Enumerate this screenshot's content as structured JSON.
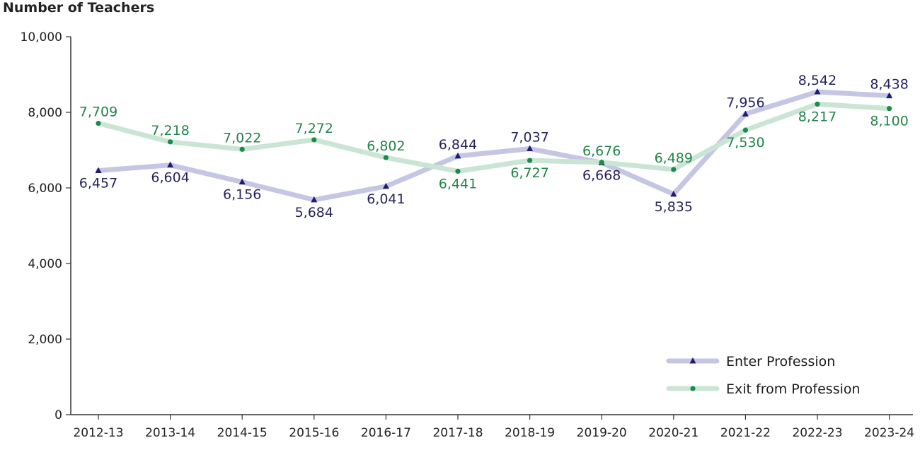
{
  "chart_data": {
    "type": "line",
    "ylabel": "Number of Teachers",
    "xlabel": "",
    "title": "",
    "ylim": [
      0,
      10000
    ],
    "yticks": [
      0,
      2000,
      4000,
      6000,
      8000,
      10000
    ],
    "ytick_labels": [
      "0",
      "2,000",
      "4,000",
      "6,000",
      "8,000",
      "10,000"
    ],
    "categories": [
      "2012-13",
      "2013-14",
      "2014-15",
      "2015-16",
      "2016-17",
      "2017-18",
      "2018-19",
      "2019-20",
      "2020-21",
      "2021-22",
      "2022-23",
      "2023-24"
    ],
    "series": [
      {
        "name": "Enter Profession",
        "values": [
          6457,
          6604,
          6156,
          5684,
          6041,
          6844,
          7037,
          6668,
          5835,
          7956,
          8542,
          8438
        ],
        "labels": [
          "6,457",
          "6,604",
          "6,156",
          "5,684",
          "6,041",
          "6,844",
          "7,037",
          "6,668",
          "5,835",
          "7,956",
          "8,542",
          "8,438"
        ],
        "line_color": "#c5c6e3",
        "marker_color": "#1f1c6e",
        "label_color": "#26235f",
        "marker": "triangle"
      },
      {
        "name": "Exit from Profession",
        "values": [
          7709,
          7218,
          7022,
          7272,
          6802,
          6441,
          6727,
          6676,
          6489,
          7530,
          8217,
          8100
        ],
        "labels": [
          "7,709",
          "7,218",
          "7,022",
          "7,272",
          "6,802",
          "6,441",
          "6,727",
          "6,676",
          "6,489",
          "7,530",
          "8,217",
          "8,100"
        ],
        "line_color": "#cbe5d5",
        "marker_color": "#1c8a4a",
        "label_color": "#23844a",
        "marker": "circle"
      }
    ],
    "grid": false,
    "legend_position": "bottom-right"
  }
}
